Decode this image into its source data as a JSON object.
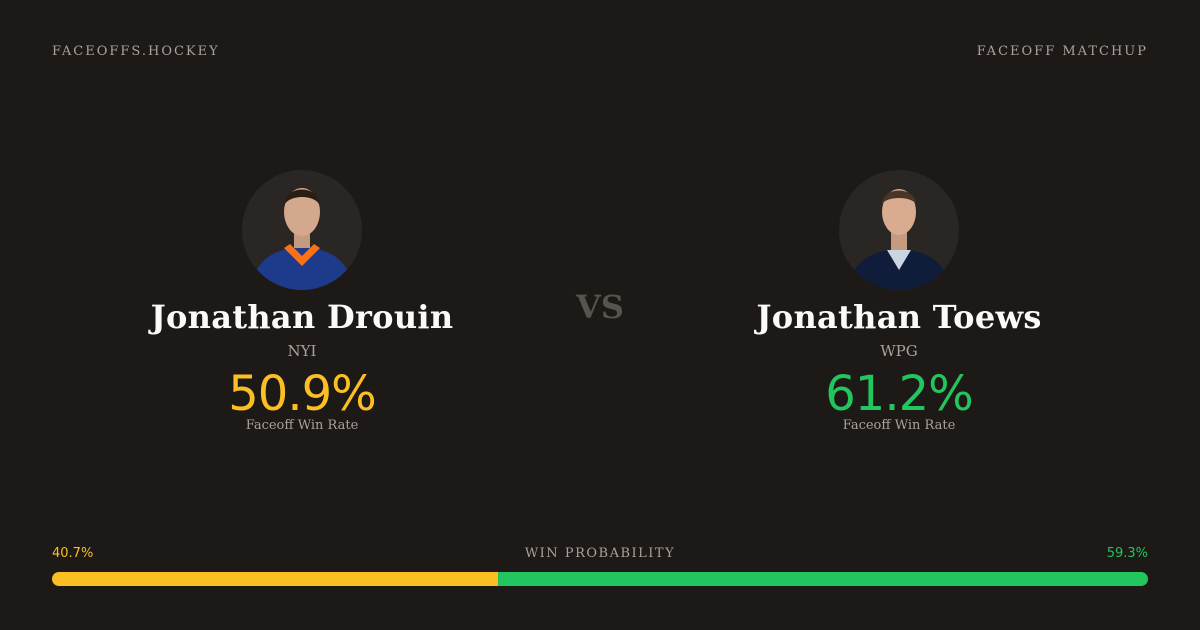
{
  "header": {
    "brand": "FACEOFFS.HOCKEY",
    "section": "FACEOFF MATCHUP"
  },
  "players": [
    {
      "name": "Jonathan Drouin",
      "team": "NYI",
      "rate": "50.9%",
      "rate_label": "Faceoff Win Rate"
    },
    {
      "name": "Jonathan Toews",
      "team": "WPG",
      "rate": "61.2%",
      "rate_label": "Faceoff Win Rate"
    }
  ],
  "versus": "VS",
  "win_probability": {
    "title": "WIN PROBABILITY",
    "values": [
      40.7,
      59.3
    ],
    "value_labels": [
      "40.7%",
      "59.3%"
    ]
  }
}
